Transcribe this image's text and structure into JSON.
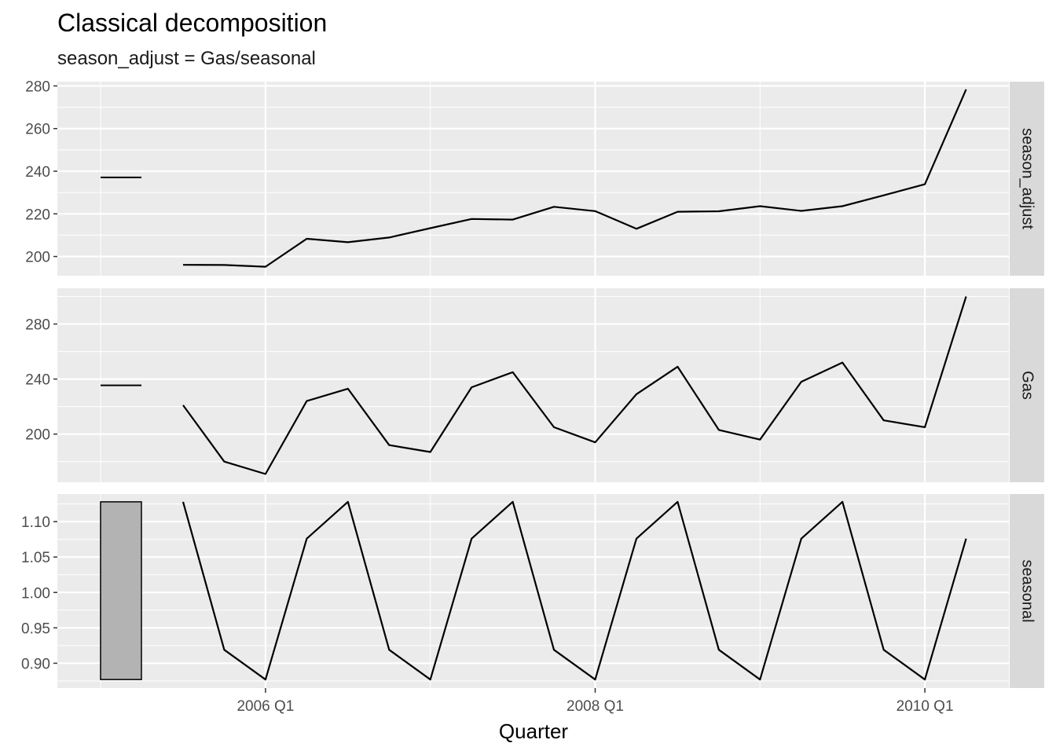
{
  "chart_data": {
    "type": "line",
    "title": "Classical decomposition",
    "subtitle": "season_adjust = Gas/seasonal",
    "xlabel": "Quarter",
    "x_ticks": [
      "2006 Q1",
      "2008 Q1",
      "2010 Q1"
    ],
    "x": [
      "2005 Q3",
      "2005 Q4",
      "2006 Q1",
      "2006 Q2",
      "2006 Q3",
      "2006 Q4",
      "2007 Q1",
      "2007 Q2",
      "2007 Q3",
      "2007 Q4",
      "2008 Q1",
      "2008 Q2",
      "2008 Q3",
      "2008 Q4",
      "2009 Q1",
      "2009 Q2",
      "2009 Q3",
      "2009 Q4",
      "2010 Q1",
      "2010 Q2"
    ],
    "panels": [
      {
        "name": "season_adjust",
        "yticks": [
          "200",
          "220",
          "240",
          "260",
          "280"
        ],
        "ylim": [
          191,
          282
        ],
        "values": [
          196.1,
          196.0,
          195.2,
          208.3,
          206.7,
          208.9,
          213.3,
          217.6,
          217.3,
          223.3,
          221.3,
          213.0,
          221.0,
          221.2,
          223.6,
          221.4,
          223.6,
          228.7,
          233.9,
          278.4
        ],
        "scale_bar": {
          "low": 237.1,
          "high": 237.1
        }
      },
      {
        "name": "Gas",
        "yticks": [
          "200",
          "240",
          "280"
        ],
        "ylim": [
          165,
          306
        ],
        "values": [
          221,
          180,
          171,
          224,
          233,
          192,
          187,
          234,
          245,
          205,
          194,
          229,
          249,
          203,
          196,
          238,
          252,
          210,
          205,
          300
        ],
        "scale_bar": {
          "low": 235.4,
          "high": 235.4
        }
      },
      {
        "name": "seasonal",
        "yticks": [
          "0.90",
          "0.95",
          "1.00",
          "1.05",
          "1.10"
        ],
        "ylim": [
          0.865,
          1.139
        ],
        "values": [
          1.128,
          0.919,
          0.877,
          1.076,
          1.128,
          0.919,
          0.877,
          1.076,
          1.128,
          0.919,
          0.877,
          1.076,
          1.128,
          0.919,
          0.877,
          1.076,
          1.128,
          0.919,
          0.877,
          1.076
        ],
        "scale_bar": {
          "low": 0.877,
          "high": 1.128
        }
      }
    ],
    "colors": {
      "panel_bg": "#ebebeb",
      "grid": "#ffffff",
      "line": "#000000",
      "strip_bg": "#d9d9d9",
      "scale_bar_fill": "#b3b3b3"
    }
  }
}
